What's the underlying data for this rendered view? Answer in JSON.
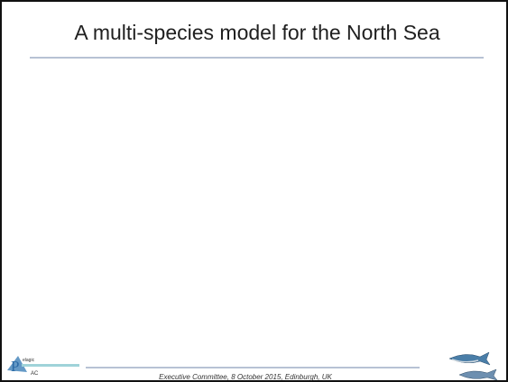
{
  "slide": {
    "title": "A multi-species model for the North Sea",
    "footer": "Executive Committee, 8 October 2015, Edinburgh, UK",
    "logo": {
      "letter": "P",
      "word": "elagic",
      "abbr": "AC"
    }
  }
}
